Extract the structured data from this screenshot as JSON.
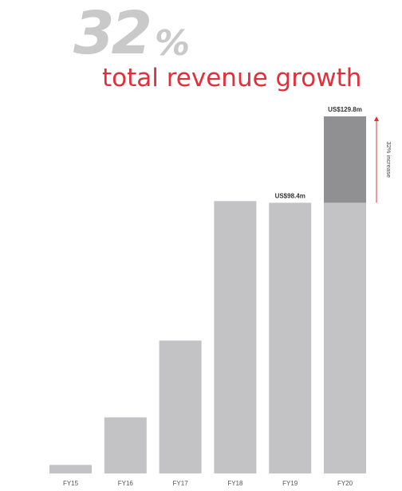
{
  "headline": {
    "number": "32",
    "percent": "%",
    "subtitle": "total revenue growth"
  },
  "colors": {
    "bar": "#c3c3c5",
    "increase_segment": "#909092",
    "accent": "#e0303b",
    "label": "#555555"
  },
  "chart_data": {
    "type": "bar",
    "title": "",
    "xlabel": "",
    "ylabel": "",
    "categories": [
      "FY15",
      "FY16",
      "FY17",
      "FY18",
      "FY19",
      "FY20"
    ],
    "values": [
      3.1,
      20.4,
      48.3,
      99.0,
      98.4,
      129.8
    ],
    "ylim": [
      0,
      129.8
    ],
    "grid": false,
    "legend": "none",
    "data_labels": [
      {
        "category": "FY19",
        "text": "US$98.4m"
      },
      {
        "category": "FY20",
        "text": "US$129.8m"
      }
    ],
    "increase_segment": {
      "category": "FY20",
      "from": 98.4,
      "to": 129.8
    },
    "annotation": "32% increase"
  }
}
